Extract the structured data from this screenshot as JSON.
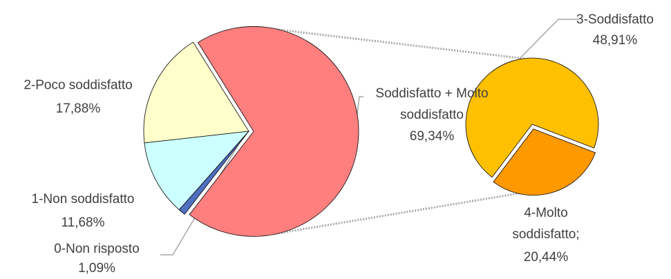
{
  "chart_data": [
    {
      "type": "pie",
      "categories": [
        "Soddisfatto + Molto soddisfatto",
        "0-Non risposto",
        "1-Non soddisfatto",
        "2-Poco soddisfatto"
      ],
      "values": [
        69.34,
        1.09,
        11.68,
        17.88
      ],
      "value_labels": [
        "69,34%",
        "1,09%",
        "11,68%",
        "17,88%"
      ],
      "colors": [
        "#ff7f7f",
        "#4f6fbf",
        "#ccffff",
        "#ffffcc"
      ]
    },
    {
      "type": "pie",
      "categories": [
        "4-Molto soddisfatto;",
        "3-Soddisfatto"
      ],
      "values": [
        20.44,
        48.91
      ],
      "value_labels": [
        "20,44%",
        "48,91%"
      ],
      "colors": [
        "#ff9900",
        "#ffc000"
      ]
    }
  ]
}
